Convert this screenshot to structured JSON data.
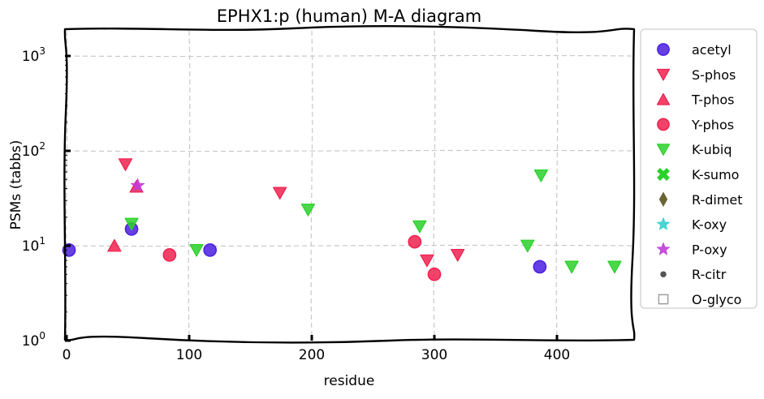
{
  "chart_data": {
    "type": "scatter",
    "title": "EPHX1:p (human) M-A diagram",
    "xlabel": "residue",
    "ylabel": "PSMs (tabbs)",
    "xlim": [
      0,
      465
    ],
    "ylim_log10": [
      0,
      3.3
    ],
    "yscale": "log",
    "x_ticks": [
      {
        "value": 0,
        "label": "0"
      },
      {
        "value": 100,
        "label": "100"
      },
      {
        "value": 200,
        "label": "200"
      },
      {
        "value": 300,
        "label": "300"
      },
      {
        "value": 400,
        "label": "400"
      }
    ],
    "y_ticks": [
      {
        "value": 1,
        "base": "10",
        "exp": "0"
      },
      {
        "value": 10,
        "base": "10",
        "exp": "1"
      },
      {
        "value": 100,
        "base": "10",
        "exp": "2"
      },
      {
        "value": 1000,
        "base": "10",
        "exp": "3"
      }
    ],
    "grid": true,
    "legend_position": "outside-right",
    "series": [
      {
        "name": "acetyl",
        "marker": "circle",
        "color": "#4b1fe0",
        "points": [
          {
            "x": 2,
            "y": 9
          },
          {
            "x": 53,
            "y": 15
          },
          {
            "x": 117,
            "y": 9
          },
          {
            "x": 386,
            "y": 6
          }
        ]
      },
      {
        "name": "S-phos",
        "marker": "triangle-down",
        "color": "#f0214f",
        "points": [
          {
            "x": 48,
            "y": 72
          },
          {
            "x": 174,
            "y": 36
          },
          {
            "x": 294,
            "y": 7
          },
          {
            "x": 319,
            "y": 8
          }
        ]
      },
      {
        "name": "T-phos",
        "marker": "triangle-up",
        "color": "#f0214f",
        "points": [
          {
            "x": 39,
            "y": 10
          },
          {
            "x": 57,
            "y": 42
          }
        ]
      },
      {
        "name": "Y-phos",
        "marker": "circle",
        "color": "#f0214f",
        "points": [
          {
            "x": 84,
            "y": 8
          },
          {
            "x": 284,
            "y": 11
          },
          {
            "x": 300,
            "y": 5
          }
        ]
      },
      {
        "name": "K-ubiq",
        "marker": "triangle-down",
        "color": "#2ad12a",
        "points": [
          {
            "x": 53,
            "y": 17
          },
          {
            "x": 106,
            "y": 9
          },
          {
            "x": 197,
            "y": 24
          },
          {
            "x": 288,
            "y": 16
          },
          {
            "x": 376,
            "y": 10
          },
          {
            "x": 387,
            "y": 55
          },
          {
            "x": 412,
            "y": 6
          },
          {
            "x": 447,
            "y": 6
          }
        ]
      },
      {
        "name": "K-sumo",
        "marker": "x",
        "color": "#2ad12a",
        "points": []
      },
      {
        "name": "R-dimet",
        "marker": "diamond",
        "color": "#6b6434",
        "points": []
      },
      {
        "name": "K-oxy",
        "marker": "star",
        "color": "#33d1cf",
        "points": []
      },
      {
        "name": "P-oxy",
        "marker": "star",
        "color": "#c13cd9",
        "points": [
          {
            "x": 58,
            "y": 43
          }
        ]
      },
      {
        "name": "R-citr",
        "marker": "dot",
        "color": "#555555",
        "points": []
      },
      {
        "name": "O-glyco",
        "marker": "square-open",
        "color": "#9a9a9a",
        "points": []
      }
    ]
  }
}
